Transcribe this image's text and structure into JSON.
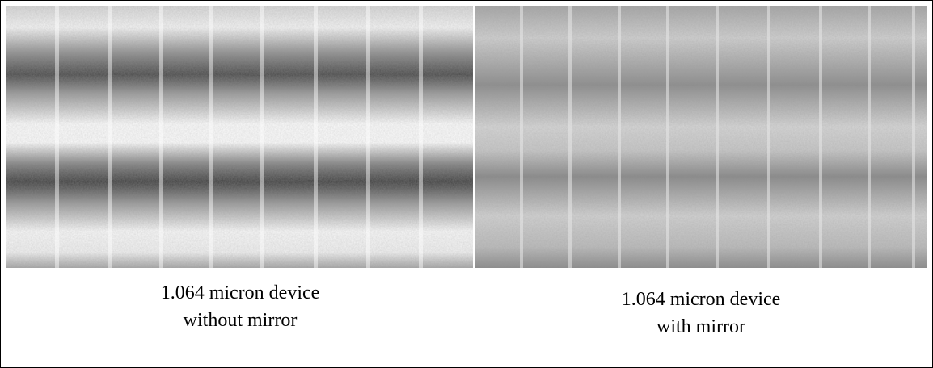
{
  "panels": [
    {
      "caption": [
        "1.064 micron device",
        "without mirror"
      ]
    },
    {
      "caption": [
        "1.064 micron device",
        "with mirror"
      ]
    }
  ]
}
